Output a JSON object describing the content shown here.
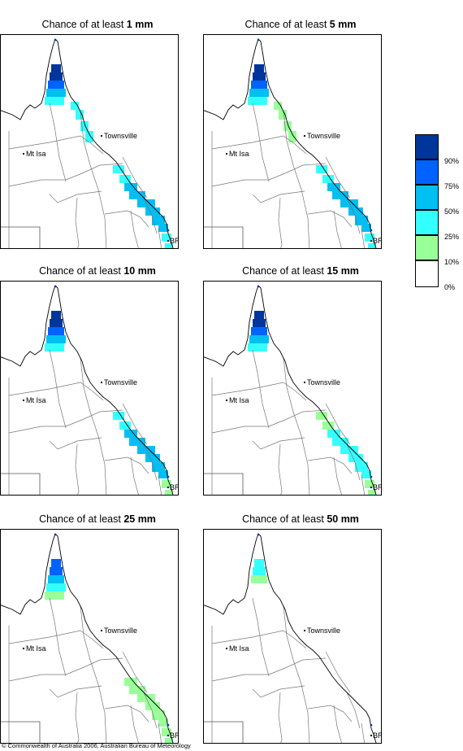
{
  "panels": [
    {
      "title_prefix": "Chance of at least ",
      "amount": "1 mm",
      "chance_by_region": {
        "cape_york": "90%",
        "north_coast": "25%",
        "central_coast": "50%",
        "southeast": "25%"
      }
    },
    {
      "title_prefix": "Chance of at least ",
      "amount": "5 mm",
      "chance_by_region": {
        "cape_york": "90%",
        "north_coast": "10%",
        "central_coast": "50%",
        "southeast": "25%"
      }
    },
    {
      "title_prefix": "Chance of at least ",
      "amount": "10 mm",
      "chance_by_region": {
        "cape_york": "90%",
        "north_coast": "0%",
        "central_coast": "50%",
        "southeast": "10%"
      }
    },
    {
      "title_prefix": "Chance of at least ",
      "amount": "15 mm",
      "chance_by_region": {
        "cape_york": "90%",
        "north_coast": "0%",
        "central_coast": "25%",
        "southeast": "10%"
      }
    },
    {
      "title_prefix": "Chance of at least ",
      "amount": "25 mm",
      "chance_by_region": {
        "cape_york": "75%",
        "north_coast": "0%",
        "central_coast": "10%",
        "southeast": "10%"
      }
    },
    {
      "title_prefix": "Chance of at least ",
      "amount": "50 mm",
      "chance_by_region": {
        "cape_york": "25%",
        "north_coast": "0%",
        "central_coast": "0%",
        "southeast": "0%"
      }
    }
  ],
  "towns": {
    "townsville": "Townsville",
    "mt_isa": "Mt Isa",
    "brisbane": "BRIS"
  },
  "legend": {
    "labels": [
      "90%",
      "75%",
      "50%",
      "25%",
      "10%",
      "0%"
    ],
    "colors": [
      "#00359c",
      "#0063ff",
      "#00bff3",
      "#33ffff",
      "#99ff99",
      "#ffffff"
    ]
  },
  "copyright": "© Commonwealth of Australia 2006, Australian Bureau of Meteorology"
}
